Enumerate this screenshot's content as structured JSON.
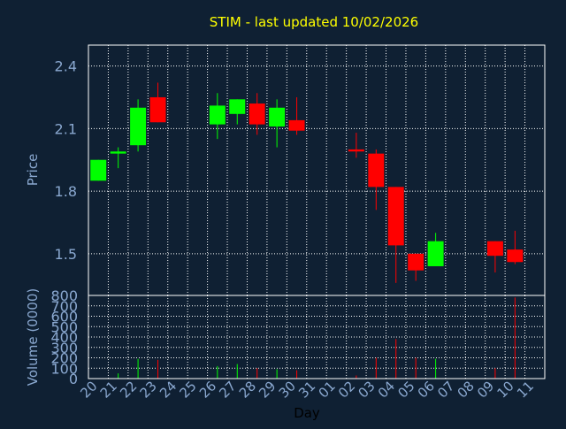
{
  "chart_data": {
    "type": "candlestick",
    "title": "STIM - last updated 10/02/2026",
    "xlabel": "Day",
    "price_axis": {
      "label": "Price",
      "ylim": [
        1.3,
        2.5
      ],
      "ticks": [
        "2.4",
        "2.1",
        "1.8",
        "1.5"
      ],
      "tick_values": [
        2.4,
        2.1,
        1.8,
        1.5
      ]
    },
    "volume_axis": {
      "label": "Volume (0000)",
      "ylim": [
        0,
        800
      ],
      "ticks": [
        "800",
        "700",
        "600",
        "500",
        "400",
        "300",
        "200",
        "100",
        "0"
      ],
      "tick_values": [
        800,
        700,
        600,
        500,
        400,
        300,
        200,
        100,
        0
      ]
    },
    "x_labels": [
      "20",
      "21",
      "22",
      "23",
      "24",
      "25",
      "26",
      "27",
      "28",
      "29",
      "30",
      "31",
      "01",
      "02",
      "03",
      "04",
      "05",
      "06",
      "07",
      "08",
      "09",
      "10",
      "11"
    ],
    "grid": true,
    "colors": {
      "background": "#0f2033",
      "up": "#00ff00",
      "down": "#ff0000",
      "grid": "#ffffff",
      "axis_text": "#8aa8d0",
      "title": "#ffff00"
    },
    "candles": [
      {
        "day": "20",
        "open": 1.85,
        "high": 1.95,
        "low": 1.85,
        "close": 1.95,
        "volume": 0
      },
      {
        "day": "21",
        "open": 1.98,
        "high": 2.01,
        "low": 1.91,
        "close": 1.99,
        "volume": 50
      },
      {
        "day": "22",
        "open": 2.02,
        "high": 2.24,
        "low": 1.99,
        "close": 2.2,
        "volume": 190
      },
      {
        "day": "23",
        "open": 2.25,
        "high": 2.32,
        "low": 2.13,
        "close": 2.13,
        "volume": 180
      },
      {
        "day": "26",
        "open": 2.12,
        "high": 2.27,
        "low": 2.05,
        "close": 2.21,
        "volume": 120
      },
      {
        "day": "27",
        "open": 2.17,
        "high": 2.24,
        "low": 2.12,
        "close": 2.24,
        "volume": 140
      },
      {
        "day": "28",
        "open": 2.22,
        "high": 2.27,
        "low": 2.07,
        "close": 2.12,
        "volume": 100
      },
      {
        "day": "29",
        "open": 2.11,
        "high": 2.24,
        "low": 2.01,
        "close": 2.2,
        "volume": 90
      },
      {
        "day": "30",
        "open": 2.14,
        "high": 2.25,
        "low": 2.07,
        "close": 2.09,
        "volume": 80
      },
      {
        "day": "02",
        "open": 2.0,
        "high": 2.08,
        "low": 1.96,
        "close": 1.99,
        "volume": 30
      },
      {
        "day": "03",
        "open": 1.98,
        "high": 2.0,
        "low": 1.71,
        "close": 1.82,
        "volume": 200
      },
      {
        "day": "04",
        "open": 1.82,
        "high": 1.82,
        "low": 1.36,
        "close": 1.54,
        "volume": 380
      },
      {
        "day": "05",
        "open": 1.5,
        "high": 1.5,
        "low": 1.37,
        "close": 1.42,
        "volume": 200
      },
      {
        "day": "06",
        "open": 1.44,
        "high": 1.6,
        "low": 1.44,
        "close": 1.56,
        "volume": 190
      },
      {
        "day": "09",
        "open": 1.56,
        "high": 1.56,
        "low": 1.41,
        "close": 1.49,
        "volume": 100
      },
      {
        "day": "10",
        "open": 1.52,
        "high": 1.61,
        "low": 1.45,
        "close": 1.46,
        "volume": 780
      }
    ]
  }
}
